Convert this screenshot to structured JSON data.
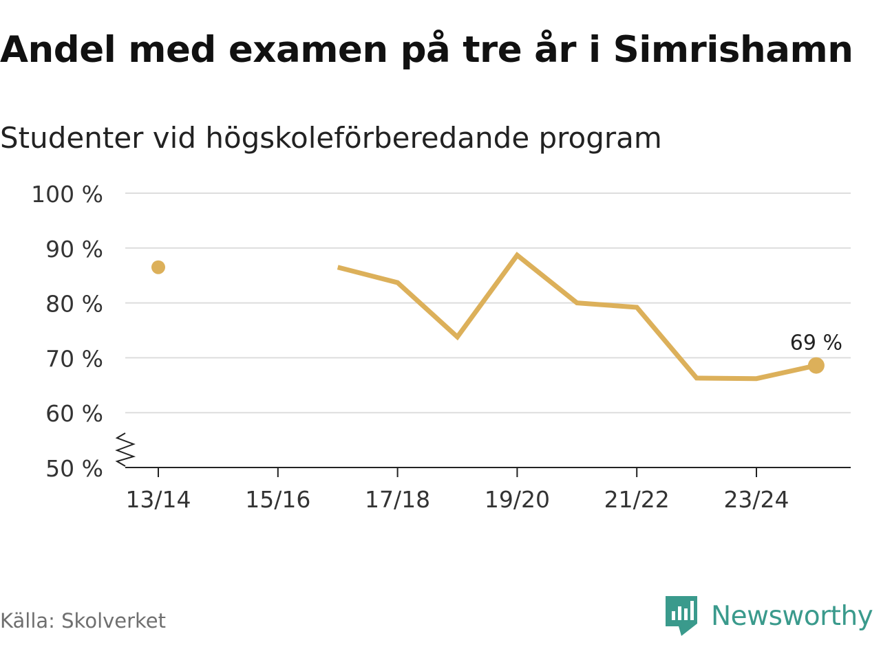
{
  "header": {
    "title": "Andel med examen på tre år i Simrishamn",
    "subtitle": "Studenter vid högskoleförberedande program"
  },
  "footer": {
    "source": "Källa: Skolverket",
    "brand": "Newsworthy"
  },
  "colors": {
    "line": "#dcb05a",
    "grid": "#dddddd",
    "axis": "#222222",
    "brand": "#3a9a8c"
  },
  "chart_data": {
    "type": "line",
    "title": "Andel med examen på tre år i Simrishamn",
    "subtitle": "Studenter vid högskoleförberedande program",
    "xlabel": "",
    "ylabel": "",
    "categories": [
      "13/14",
      "14/15",
      "15/16",
      "16/17",
      "17/18",
      "18/19",
      "19/20",
      "20/21",
      "21/22",
      "22/23",
      "23/24",
      "24/25"
    ],
    "x_tick_labels": [
      "13/14",
      "15/16",
      "17/18",
      "19/20",
      "21/22",
      "23/24"
    ],
    "series": [
      {
        "name": "Andel med examen på tre år",
        "values": [
          86.5,
          null,
          null,
          86.5,
          83.7,
          73.8,
          88.7,
          80.0,
          79.2,
          66.3,
          66.2,
          68.6
        ]
      }
    ],
    "ylim": [
      50,
      100
    ],
    "y_ticks": [
      50,
      60,
      70,
      80,
      90,
      100
    ],
    "y_tick_suffix": " %",
    "axis_break": true,
    "grid": true,
    "annotations": [
      {
        "category": "24/25",
        "label": "69 %"
      }
    ]
  }
}
